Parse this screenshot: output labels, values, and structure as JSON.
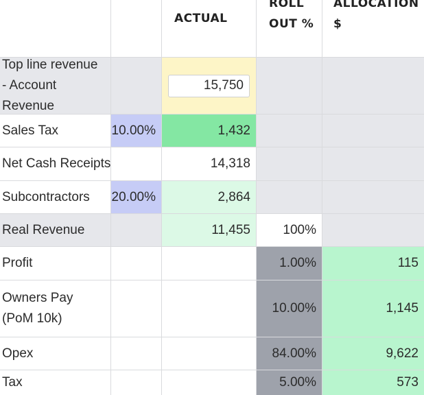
{
  "headers": {
    "actual": "ACTUAL",
    "rollout_line1": "ROLL",
    "rollout_line2": "OUT %",
    "allocation_line1": "ALLOCATION",
    "allocation_line2": "$"
  },
  "rows": [
    {
      "label": "Top line revenue - Account Revenue",
      "pct": "",
      "actual": "15,750",
      "rollout": "",
      "allocation": ""
    },
    {
      "label": "Sales Tax",
      "pct": "10.00%",
      "actual": "1,432",
      "rollout": "",
      "allocation": ""
    },
    {
      "label": "Net Cash Receipts",
      "pct": "",
      "actual": "14,318",
      "rollout": "",
      "allocation": ""
    },
    {
      "label": "Subcontractors",
      "pct": "20.00%",
      "actual": "2,864",
      "rollout": "",
      "allocation": ""
    },
    {
      "label": "Real Revenue",
      "pct": "",
      "actual": "11,455",
      "rollout": "100%",
      "allocation": ""
    },
    {
      "label": "Profit",
      "pct": "",
      "actual": "",
      "rollout": "1.00%",
      "allocation": "115"
    },
    {
      "label": "Owners Pay (PoM 10k)",
      "pct": "",
      "actual": "",
      "rollout": "10.00%",
      "allocation": "1,145"
    },
    {
      "label": "Opex",
      "pct": "",
      "actual": "",
      "rollout": "84.00%",
      "allocation": "9,622"
    },
    {
      "label": "Tax",
      "pct": "",
      "actual": "",
      "rollout": "5.00%",
      "allocation": "573"
    }
  ],
  "colors": {
    "gray": "#e6e7eb",
    "yellow": "#fdf5c7",
    "green_strong": "#84e7a3",
    "green_light": "#dcf9e6",
    "blue": "#c6ccf6",
    "slate": "#9ea2ab",
    "mint": "#b8f5ce"
  }
}
